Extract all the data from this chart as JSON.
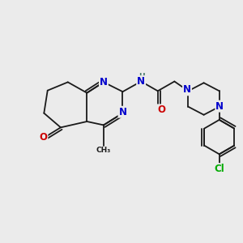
{
  "bg_color": "#ebebeb",
  "bond_color": "#1a1a1a",
  "bond_width": 1.3,
  "atom_colors": {
    "N": "#0000cc",
    "O": "#cc0000",
    "Cl": "#00aa00",
    "H": "#447766",
    "C": "#1a1a1a"
  },
  "font_size_atom": 8.5,
  "font_size_small": 7.0
}
